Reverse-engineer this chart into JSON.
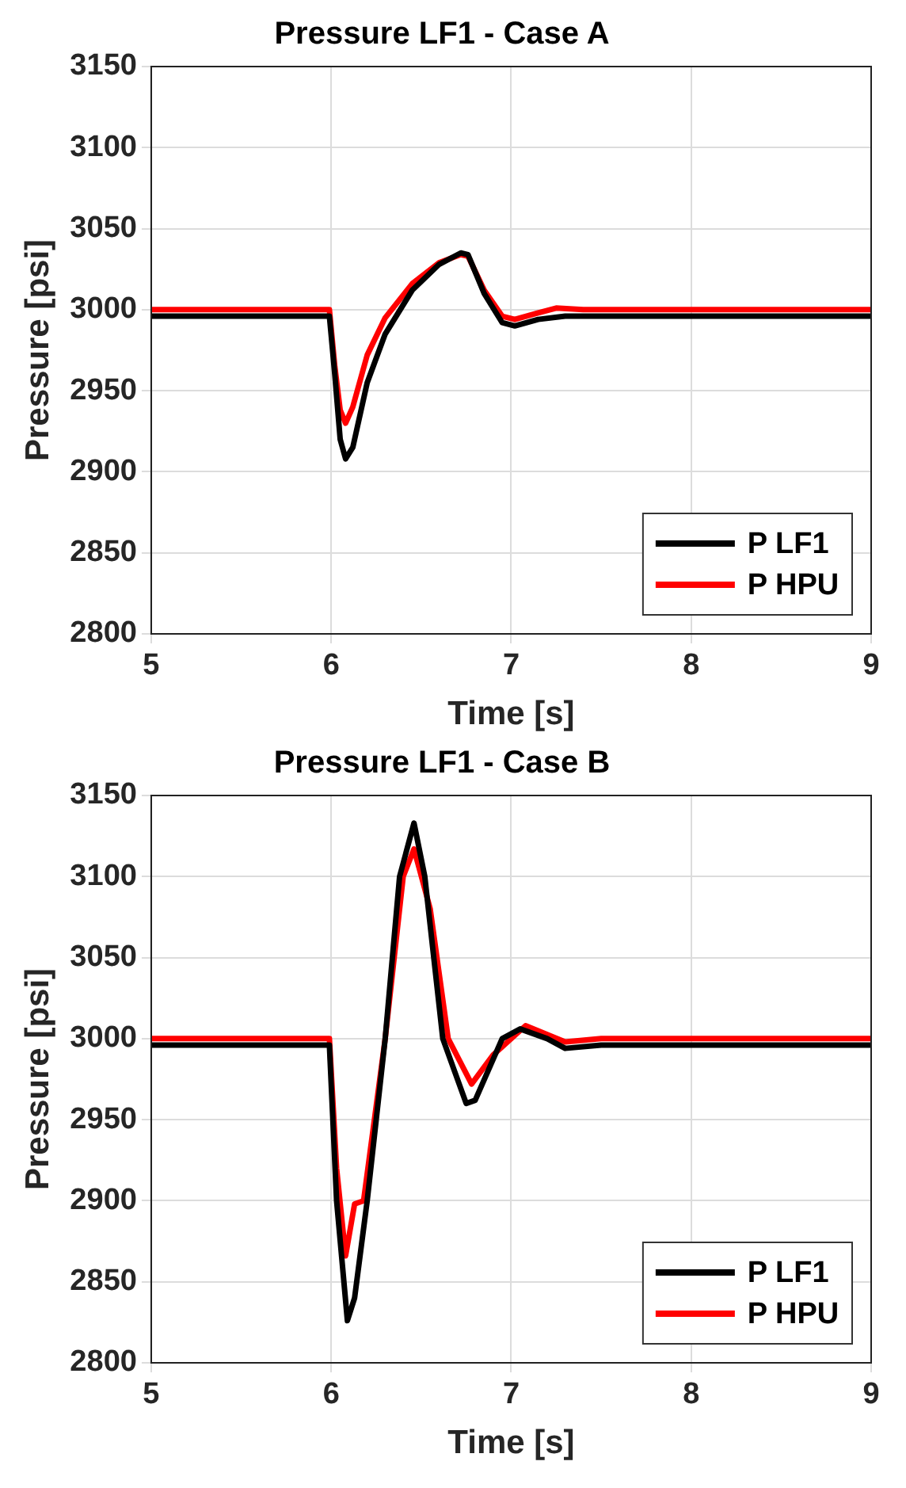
{
  "chart_data": [
    {
      "type": "line",
      "title": "Pressure LF1 - Case A",
      "xlabel": "Time [s]",
      "ylabel": "Pressure [psi]",
      "xlim": [
        5,
        9
      ],
      "xticks": [
        5,
        6,
        7,
        8,
        9
      ],
      "ylim": [
        2800,
        3150
      ],
      "yticks": [
        2800,
        2850,
        2900,
        2950,
        3000,
        3050,
        3100,
        3150
      ],
      "grid": true,
      "legend": "bottom right",
      "marker": "none",
      "line_style": "solid",
      "series": [
        {
          "name": "P LF1",
          "color": "#000000",
          "x": [
            5,
            5.99,
            6.02,
            6.05,
            6.08,
            6.12,
            6.2,
            6.3,
            6.45,
            6.6,
            6.72,
            6.76,
            6.85,
            6.95,
            7.02,
            7.15,
            7.3,
            8,
            9
          ],
          "values": [
            2996,
            2996,
            2960,
            2920,
            2908,
            2915,
            2955,
            2985,
            3012,
            3028,
            3035,
            3034,
            3010,
            2992,
            2990,
            2994,
            2996,
            2996,
            2996
          ]
        },
        {
          "name": "P HPU",
          "color": "#ff0000",
          "x": [
            5,
            5.99,
            6.02,
            6.05,
            6.08,
            6.12,
            6.2,
            6.3,
            6.45,
            6.6,
            6.72,
            6.76,
            6.85,
            6.95,
            7.02,
            7.15,
            7.25,
            7.4,
            8,
            9
          ],
          "values": [
            3000,
            3000,
            2965,
            2938,
            2930,
            2940,
            2972,
            2995,
            3016,
            3029,
            3034,
            3033,
            3012,
            2996,
            2994,
            2998,
            3001,
            3000,
            3000,
            3000
          ]
        }
      ]
    },
    {
      "type": "line",
      "title": "Pressure LF1 - Case B",
      "xlabel": "Time [s]",
      "ylabel": "Pressure [psi]",
      "xlim": [
        5,
        9
      ],
      "xticks": [
        5,
        6,
        7,
        8,
        9
      ],
      "ylim": [
        2800,
        3150
      ],
      "yticks": [
        2800,
        2850,
        2900,
        2950,
        3000,
        3050,
        3100,
        3150
      ],
      "grid": true,
      "legend": "bottom right",
      "marker": "none",
      "line_style": "solid",
      "series": [
        {
          "name": "P LF1",
          "color": "#000000",
          "x": [
            5,
            5.99,
            6.03,
            6.09,
            6.13,
            6.2,
            6.3,
            6.38,
            6.46,
            6.52,
            6.62,
            6.75,
            6.8,
            6.95,
            7.05,
            7.2,
            7.3,
            7.5,
            9
          ],
          "values": [
            2996,
            2996,
            2900,
            2826,
            2840,
            2900,
            3000,
            3100,
            3133,
            3100,
            3000,
            2960,
            2962,
            3000,
            3006,
            3000,
            2994,
            2996,
            2996
          ]
        },
        {
          "name": "P HPU",
          "color": "#ff0000",
          "x": [
            5,
            5.99,
            6.03,
            6.08,
            6.13,
            6.18,
            6.3,
            6.4,
            6.46,
            6.55,
            6.65,
            6.78,
            6.9,
            7.08,
            7.3,
            7.5,
            9
          ],
          "values": [
            3000,
            3000,
            2920,
            2866,
            2898,
            2900,
            3000,
            3100,
            3117,
            3080,
            3000,
            2972,
            2990,
            3008,
            2998,
            3000,
            3000
          ]
        }
      ]
    }
  ]
}
